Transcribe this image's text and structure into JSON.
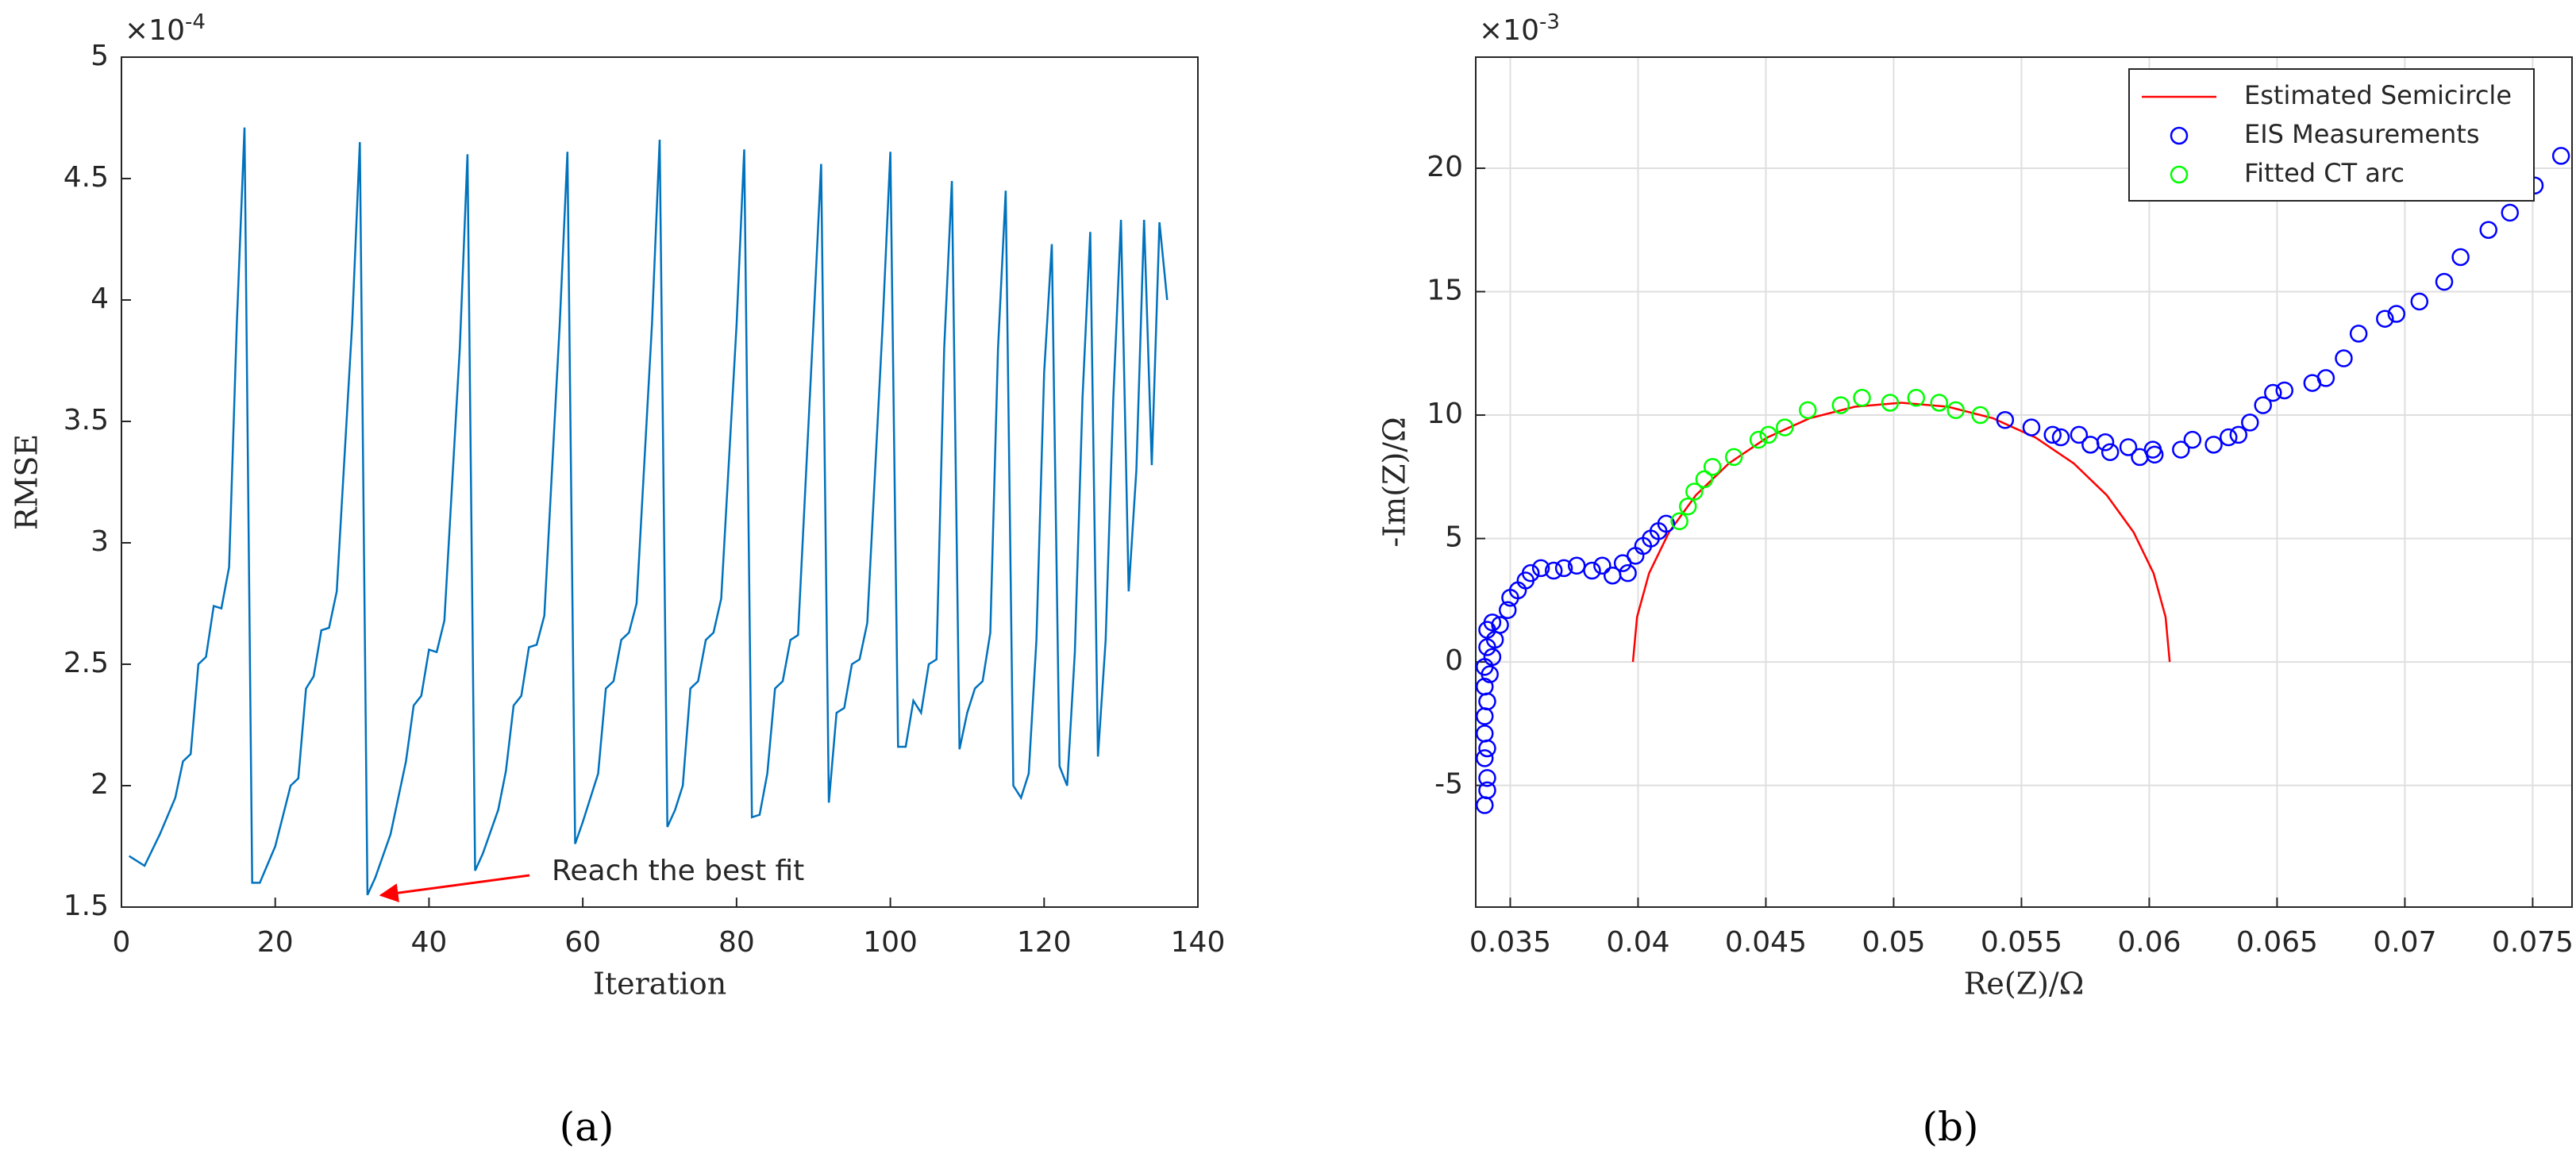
{
  "chart_data": [
    {
      "type": "line",
      "caption": "(a)",
      "x_label": "Iteration",
      "y_label": "RMSE",
      "y_multiplier": {
        "base": "×10",
        "power": "-4"
      },
      "xlim": [
        0,
        140
      ],
      "xticks": [
        0,
        20,
        40,
        60,
        80,
        100,
        120,
        140
      ],
      "ylim": [
        1.5,
        5
      ],
      "yticks": [
        1.5,
        2,
        2.5,
        3,
        3.5,
        4,
        4.5,
        5
      ],
      "grid": false,
      "color": "#0072bd",
      "x": [
        1,
        3,
        5,
        7,
        8,
        9,
        10,
        11,
        12,
        13,
        14,
        15,
        16,
        17,
        18,
        20,
        22,
        23,
        24,
        25,
        26,
        27,
        28,
        30,
        31,
        32,
        33,
        35,
        37,
        38,
        39,
        40,
        41,
        42,
        44,
        45,
        46,
        47,
        49,
        50,
        51,
        52,
        53,
        54,
        55,
        57,
        58,
        59,
        60,
        62,
        63,
        64,
        65,
        66,
        67,
        69,
        70,
        71,
        72,
        73,
        74,
        75,
        76,
        77,
        78,
        80,
        81,
        82,
        83,
        84,
        85,
        86,
        87,
        88,
        90,
        91,
        92,
        93,
        94,
        95,
        96,
        97,
        99,
        100,
        101,
        102,
        103,
        104,
        105,
        106,
        107,
        108,
        109,
        110,
        111,
        112,
        113,
        114,
        115,
        116,
        117,
        118,
        119,
        120,
        121,
        122,
        123,
        124,
        125,
        126,
        127,
        128,
        129,
        130,
        131,
        132,
        133,
        134,
        135,
        136
      ],
      "values": [
        1.71,
        1.67,
        1.8,
        1.95,
        2.1,
        2.13,
        2.5,
        2.53,
        2.74,
        2.73,
        2.9,
        3.9,
        4.71,
        1.6,
        1.6,
        1.75,
        2.0,
        2.03,
        2.4,
        2.45,
        2.64,
        2.65,
        2.8,
        3.9,
        4.65,
        1.55,
        1.62,
        1.8,
        2.1,
        2.33,
        2.37,
        2.56,
        2.55,
        2.68,
        3.8,
        4.6,
        1.65,
        1.72,
        1.9,
        2.06,
        2.33,
        2.37,
        2.57,
        2.58,
        2.7,
        3.9,
        4.61,
        1.76,
        1.85,
        2.05,
        2.4,
        2.43,
        2.6,
        2.63,
        2.75,
        3.9,
        4.66,
        1.83,
        1.9,
        2.0,
        2.4,
        2.43,
        2.6,
        2.63,
        2.77,
        3.9,
        4.62,
        1.87,
        1.88,
        2.05,
        2.4,
        2.43,
        2.6,
        2.62,
        3.9,
        4.56,
        1.93,
        2.3,
        2.32,
        2.5,
        2.52,
        2.67,
        3.9,
        4.61,
        2.16,
        2.16,
        2.35,
        2.3,
        2.5,
        2.52,
        3.8,
        4.49,
        2.15,
        2.3,
        2.4,
        2.43,
        2.63,
        3.8,
        4.45,
        2.0,
        1.95,
        2.05,
        2.6,
        3.7,
        4.23,
        2.08,
        2.0,
        2.55,
        3.6,
        4.28,
        2.12,
        2.6,
        3.6,
        4.33,
        2.8,
        3.3,
        4.33,
        3.32,
        4.32,
        4.0
      ],
      "annotation": "Reach the best fit"
    },
    {
      "type": "scatter",
      "caption": "(b)",
      "x_label": "Re(Z)/Ω",
      "y_label": "-Im(Z)/Ω",
      "y_multiplier": {
        "base": "×10",
        "power": "-3"
      },
      "xlim": [
        0.03365,
        0.07654
      ],
      "xticks": [
        0.035,
        0.04,
        0.045,
        0.05,
        0.055,
        0.06,
        0.065,
        0.07,
        0.075
      ],
      "ylim": [
        -9.93,
        24.5
      ],
      "yticks": [
        -5,
        0,
        5,
        10,
        15,
        20
      ],
      "grid": true,
      "legend": "northeast",
      "series": [
        {
          "name": "Estimated Semicircle",
          "color": "#ff0000",
          "mode": "line",
          "x": [
            0.0398,
            0.03996,
            0.04043,
            0.04121,
            0.04226,
            0.04355,
            0.04505,
            0.04671,
            0.04848,
            0.0503,
            0.05212,
            0.05389,
            0.05555,
            0.05705,
            0.05834,
            0.05939,
            0.06017,
            0.06064,
            0.0608
          ],
          "values": [
            0,
            1.82,
            3.59,
            5.25,
            6.75,
            8.04,
            9.09,
            9.87,
            10.34,
            10.5,
            10.34,
            9.87,
            9.09,
            8.04,
            6.75,
            5.25,
            3.59,
            1.82,
            0
          ]
        },
        {
          "name": "EIS Measurements",
          "color": "#0000ff",
          "mode": "markers",
          "x": [
            0.034,
            0.0341,
            0.0341,
            0.034,
            0.0341,
            0.034,
            0.034,
            0.0341,
            0.034,
            0.0342,
            0.034,
            0.0343,
            0.0341,
            0.0344,
            0.0341,
            0.0343,
            0.0346,
            0.0349,
            0.035,
            0.0353,
            0.0356,
            0.0358,
            0.0362,
            0.0367,
            0.0371,
            0.0376,
            0.0382,
            0.0386,
            0.039,
            0.0394,
            0.0396,
            0.0399,
            0.0402,
            0.0405,
            0.0408,
            0.0411,
            0.05436,
            0.05539,
            0.05622,
            0.05654,
            0.05725,
            0.0577,
            0.05828,
            0.05847,
            0.05918,
            0.05963,
            0.06014,
            0.06021,
            0.06124,
            0.06169,
            0.06252,
            0.0631,
            0.06349,
            0.06394,
            0.06445,
            0.06484,
            0.06529,
            0.06638,
            0.06691,
            0.06761,
            0.06819,
            0.06922,
            0.06967,
            0.07057,
            0.07154,
            0.07218,
            0.07327,
            0.07411,
            0.07508,
            0.07611
          ],
          "values": [
            -5.8,
            -5.2,
            -4.7,
            -3.9,
            -3.5,
            -2.9,
            -2.2,
            -1.6,
            -1.0,
            -0.5,
            -0.2,
            0.2,
            0.6,
            0.9,
            1.3,
            1.6,
            1.5,
            2.1,
            2.6,
            2.9,
            3.3,
            3.6,
            3.8,
            3.7,
            3.8,
            3.9,
            3.7,
            3.9,
            3.5,
            4.0,
            3.6,
            4.3,
            4.7,
            5.0,
            5.3,
            5.6,
            9.8,
            9.5,
            9.2,
            9.1,
            9.2,
            8.8,
            8.9,
            8.5,
            8.7,
            8.3,
            8.6,
            8.4,
            8.6,
            9.0,
            8.8,
            9.1,
            9.2,
            9.7,
            10.4,
            10.9,
            11.0,
            11.3,
            11.5,
            12.3,
            13.3,
            13.9,
            14.1,
            14.6,
            15.4,
            16.4,
            17.5,
            18.2,
            19.3,
            20.5
          ]
        },
        {
          "name": "Fitted CT arc",
          "color": "#00ff00",
          "mode": "markers",
          "x": [
            0.04162,
            0.04195,
            0.0422,
            0.04259,
            0.04291,
            0.04375,
            0.04471,
            0.0451,
            0.04574,
            0.04664,
            0.04793,
            0.04876,
            0.04986,
            0.05088,
            0.05178,
            0.05243,
            0.05339
          ],
          "values": [
            5.7,
            6.3,
            6.9,
            7.4,
            7.9,
            8.3,
            9.0,
            9.2,
            9.5,
            10.2,
            10.4,
            10.7,
            10.5,
            10.7,
            10.5,
            10.2,
            10.0
          ]
        }
      ]
    }
  ]
}
